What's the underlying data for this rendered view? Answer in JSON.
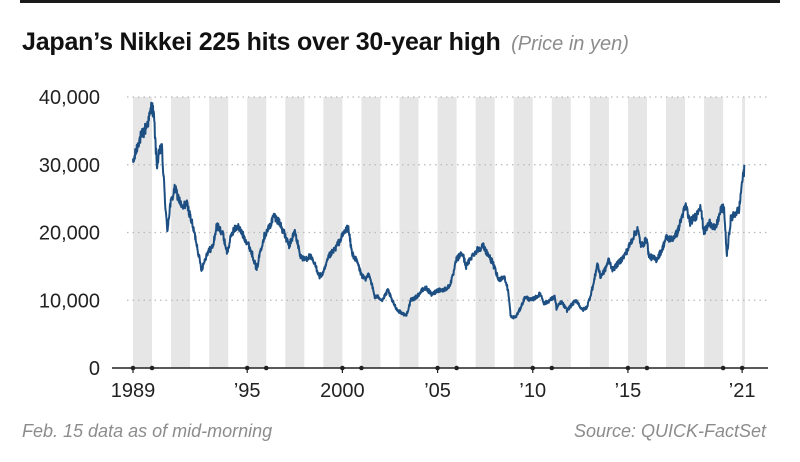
{
  "chart_data": {
    "type": "line",
    "title": "Japan’s Nikkei 225 hits over 30-year high",
    "subtitle": "(Price in yen)",
    "xlabel": "",
    "ylabel": "",
    "ylim": [
      0,
      40000
    ],
    "xlim": [
      1989,
      2021.15
    ],
    "grid": "horizontal dotted",
    "legend": "none",
    "yticks": [
      {
        "value": 0,
        "label": "0"
      },
      {
        "value": 10000,
        "label": "10,000"
      },
      {
        "value": 20000,
        "label": "20,000"
      },
      {
        "value": 30000,
        "label": "30,000"
      },
      {
        "value": 40000,
        "label": "40,000"
      }
    ],
    "xticks": [
      {
        "value": 1989,
        "label": "1989"
      },
      {
        "value": 1995,
        "label": "’95"
      },
      {
        "value": 2000,
        "label": "2000"
      },
      {
        "value": 2005,
        "label": "’05"
      },
      {
        "value": 2010,
        "label": "’10"
      },
      {
        "value": 2015,
        "label": "’15"
      },
      {
        "value": 2021,
        "label": "’21"
      }
    ],
    "year_dots": [
      1989,
      1990,
      1995,
      1996,
      2000,
      2001,
      2005,
      2006,
      2010,
      2011,
      2015,
      2016,
      2020,
      2021
    ],
    "series": [
      {
        "values": [
          [
            1989.0,
            30200
          ],
          [
            1989.3,
            33500
          ],
          [
            1989.6,
            35000
          ],
          [
            1989.85,
            36800
          ],
          [
            1989.99,
            38900
          ],
          [
            1990.1,
            37000
          ],
          [
            1990.25,
            30000
          ],
          [
            1990.5,
            33000
          ],
          [
            1990.7,
            24000
          ],
          [
            1990.8,
            20200
          ],
          [
            1990.95,
            24000
          ],
          [
            1991.2,
            26500
          ],
          [
            1991.4,
            25000
          ],
          [
            1991.6,
            23500
          ],
          [
            1991.8,
            24500
          ],
          [
            1992.0,
            22500
          ],
          [
            1992.3,
            19000
          ],
          [
            1992.6,
            14500
          ],
          [
            1992.9,
            17000
          ],
          [
            1993.2,
            18000
          ],
          [
            1993.4,
            21000
          ],
          [
            1993.7,
            20000
          ],
          [
            1993.95,
            17000
          ],
          [
            1994.2,
            20000
          ],
          [
            1994.5,
            21000
          ],
          [
            1994.8,
            19500
          ],
          [
            1995.1,
            18000
          ],
          [
            1995.3,
            16500
          ],
          [
            1995.5,
            14500
          ],
          [
            1995.7,
            17500
          ],
          [
            1995.9,
            19500
          ],
          [
            1996.2,
            21000
          ],
          [
            1996.4,
            22500
          ],
          [
            1996.7,
            21500
          ],
          [
            1996.99,
            19500
          ],
          [
            1997.2,
            18000
          ],
          [
            1997.5,
            20200
          ],
          [
            1997.8,
            16500
          ],
          [
            1998.0,
            16000
          ],
          [
            1998.3,
            16500
          ],
          [
            1998.6,
            15000
          ],
          [
            1998.8,
            13500
          ],
          [
            1999.0,
            14000
          ],
          [
            1999.3,
            16500
          ],
          [
            1999.6,
            17500
          ],
          [
            1999.8,
            18500
          ],
          [
            2000.1,
            20000
          ],
          [
            2000.3,
            20800
          ],
          [
            2000.5,
            17000
          ],
          [
            2000.8,
            15500
          ],
          [
            2000.99,
            13800
          ],
          [
            2001.2,
            13000
          ],
          [
            2001.4,
            14000
          ],
          [
            2001.7,
            10500
          ],
          [
            2001.9,
            10500
          ],
          [
            2002.1,
            10000
          ],
          [
            2002.4,
            11500
          ],
          [
            2002.6,
            10000
          ],
          [
            2002.9,
            8500
          ],
          [
            2003.2,
            8000
          ],
          [
            2003.35,
            7700
          ],
          [
            2003.6,
            10000
          ],
          [
            2003.9,
            10500
          ],
          [
            2004.2,
            11500
          ],
          [
            2004.4,
            11800
          ],
          [
            2004.7,
            10800
          ],
          [
            2004.99,
            11500
          ],
          [
            2005.3,
            11500
          ],
          [
            2005.6,
            12000
          ],
          [
            2005.8,
            13500
          ],
          [
            2005.99,
            16000
          ],
          [
            2006.3,
            17000
          ],
          [
            2006.5,
            15000
          ],
          [
            2006.8,
            16500
          ],
          [
            2007.1,
            17500
          ],
          [
            2007.4,
            18000
          ],
          [
            2007.6,
            17000
          ],
          [
            2007.9,
            15500
          ],
          [
            2008.2,
            13000
          ],
          [
            2008.5,
            13500
          ],
          [
            2008.7,
            11500
          ],
          [
            2008.85,
            7500
          ],
          [
            2009.1,
            7500
          ],
          [
            2009.3,
            8500
          ],
          [
            2009.6,
            10500
          ],
          [
            2009.9,
            10000
          ],
          [
            2010.2,
            10500
          ],
          [
            2010.4,
            11000
          ],
          [
            2010.6,
            9500
          ],
          [
            2010.9,
            10000
          ],
          [
            2011.15,
            10500
          ],
          [
            2011.25,
            8800
          ],
          [
            2011.5,
            9800
          ],
          [
            2011.8,
            8500
          ],
          [
            2012.1,
            9500
          ],
          [
            2012.3,
            10000
          ],
          [
            2012.6,
            8500
          ],
          [
            2012.85,
            9000
          ],
          [
            2012.99,
            10300
          ],
          [
            2013.2,
            12500
          ],
          [
            2013.4,
            15500
          ],
          [
            2013.55,
            13500
          ],
          [
            2013.8,
            14500
          ],
          [
            2013.99,
            16000
          ],
          [
            2014.2,
            14500
          ],
          [
            2014.5,
            15500
          ],
          [
            2014.8,
            16500
          ],
          [
            2014.99,
            17500
          ],
          [
            2015.3,
            19500
          ],
          [
            2015.5,
            20500
          ],
          [
            2015.7,
            18000
          ],
          [
            2015.99,
            19000
          ],
          [
            2016.1,
            16500
          ],
          [
            2016.5,
            16000
          ],
          [
            2016.8,
            17500
          ],
          [
            2016.99,
            19200
          ],
          [
            2017.3,
            19000
          ],
          [
            2017.6,
            20000
          ],
          [
            2017.85,
            22500
          ],
          [
            2018.05,
            24000
          ],
          [
            2018.25,
            21500
          ],
          [
            2018.6,
            22500
          ],
          [
            2018.8,
            24200
          ],
          [
            2018.99,
            20000
          ],
          [
            2019.3,
            21500
          ],
          [
            2019.6,
            20500
          ],
          [
            2019.9,
            23500
          ],
          [
            2020.05,
            23500
          ],
          [
            2020.2,
            16500
          ],
          [
            2020.4,
            22000
          ],
          [
            2020.7,
            23000
          ],
          [
            2020.85,
            23500
          ],
          [
            2020.99,
            27500
          ],
          [
            2021.08,
            28500
          ],
          [
            2021.125,
            30000
          ]
        ]
      }
    ]
  },
  "footer": {
    "note": "Feb. 15 data as of mid-morning",
    "source": "Source: QUICK-FactSet"
  },
  "colors": {
    "line": "#1d4f82",
    "band": "#e6e6e6",
    "grid": "#b9b9b9",
    "axis": "#222222"
  }
}
